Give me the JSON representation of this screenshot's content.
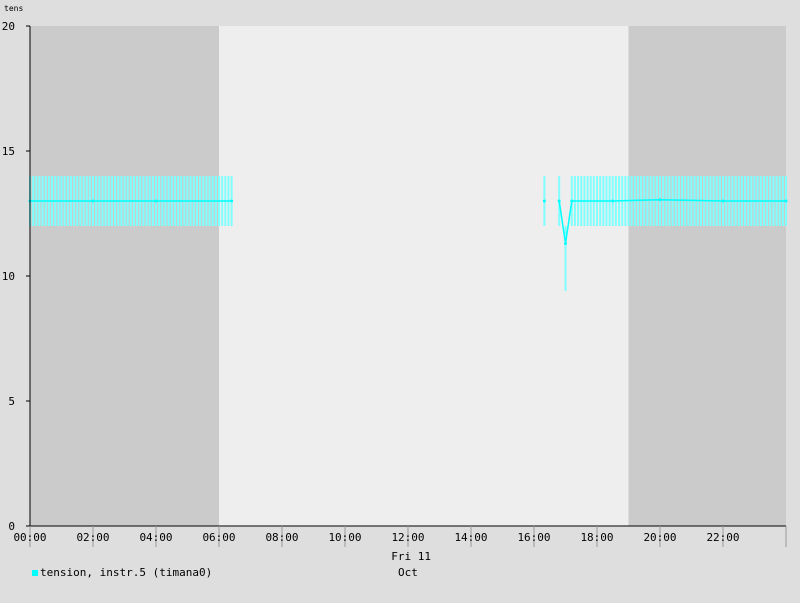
{
  "chart_data": {
    "type": "line",
    "ylabel": "tens",
    "ylim": [
      0,
      20
    ],
    "y_ticks": [
      "0",
      "5",
      "10",
      "15",
      "20"
    ],
    "y_tick_values": [
      0,
      5,
      10,
      15,
      20
    ],
    "x_unit": "hours",
    "xlim": [
      0,
      24
    ],
    "x_ticks": [
      "00:00",
      "02:00",
      "04:00",
      "06:00",
      "08:00",
      "10:00",
      "12:00",
      "14:00",
      "16:00",
      "18:00",
      "20:00",
      "22:00"
    ],
    "x_tick_values": [
      0,
      2,
      4,
      6,
      8,
      10,
      12,
      14,
      16,
      18,
      20,
      22
    ],
    "date_label": "Fri 11",
    "month_label": "Oct",
    "night_shading": [
      [
        0,
        6.0
      ],
      [
        19.0,
        24
      ]
    ],
    "series": [
      {
        "name": "tension, instr.5 (timana0)",
        "color": "#00ffff",
        "band_color": "#80ffff",
        "segments": [
          {
            "x": [
              0.0,
              2.0,
              4.0,
              6.4
            ],
            "y": [
              13.0,
              13.0,
              13.0,
              13.0
            ]
          },
          {
            "x": [
              16.33
            ],
            "y": [
              13.0
            ]
          },
          {
            "x": [
              16.8,
              17.0,
              17.2,
              18.5,
              20.0,
              22.0,
              24.0
            ],
            "y": [
              13.0,
              11.3,
              13.0,
              13.0,
              13.05,
              13.0,
              13.0
            ]
          }
        ],
        "error_bands": [
          {
            "x_start": 0.0,
            "x_end": 6.4,
            "y_low": 12.0,
            "y_high": 14.0
          },
          {
            "x_start": 16.33,
            "x_end": 16.33,
            "y_low": 12.0,
            "y_high": 14.0
          },
          {
            "x_start": 16.8,
            "x_end": 16.8,
            "y_low": 12.0,
            "y_high": 14.0
          },
          {
            "x_start": 17.0,
            "x_end": 17.0,
            "y_low": 9.4,
            "y_high": 12.0
          },
          {
            "x_start": 17.2,
            "x_end": 24.0,
            "y_low": 12.0,
            "y_high": 14.0
          }
        ]
      }
    ]
  }
}
